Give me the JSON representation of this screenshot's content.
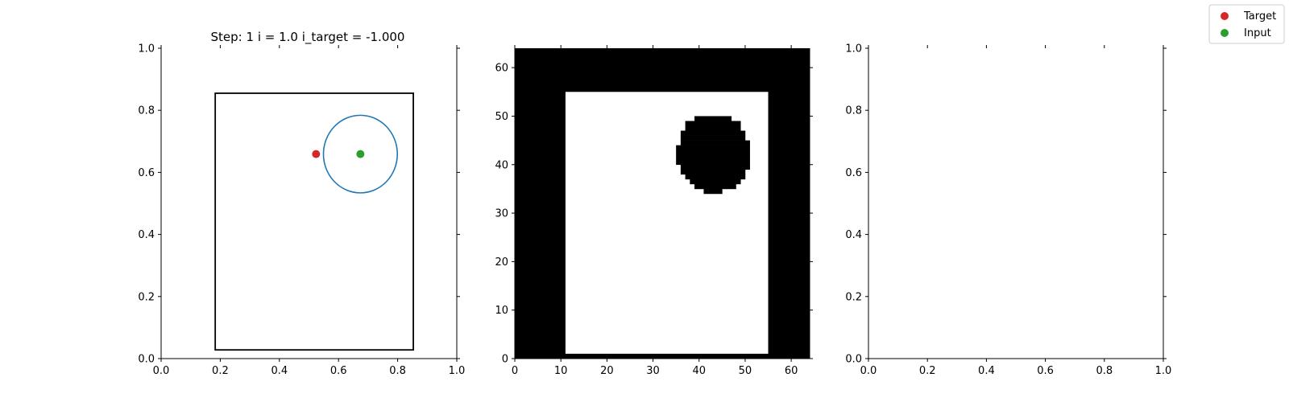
{
  "chart_data": [
    {
      "type": "scatter",
      "title": "Step: 1 i = 1.0 i_target = -1.000",
      "xlim": [
        0,
        1
      ],
      "ylim": [
        0,
        1
      ],
      "xticks": [
        "0.0",
        "0.2",
        "0.4",
        "0.6",
        "0.8",
        "1.0"
      ],
      "yticks": [
        "0.0",
        "0.2",
        "0.4",
        "0.6",
        "0.8",
        "1.0"
      ],
      "xtick_values": [
        0,
        0.2,
        0.4,
        0.6,
        0.8,
        1.0
      ],
      "ytick_values": [
        0,
        0.2,
        0.4,
        0.6,
        0.8,
        1.0
      ],
      "rectangle": {
        "x0": 0.183,
        "y0": 0.028,
        "x1": 0.853,
        "y1": 0.855,
        "color": "#000000"
      },
      "ellipse": {
        "cx": 0.674,
        "cy": 0.659,
        "rx": 0.125,
        "ry": 0.125,
        "color": "#1f77b4"
      },
      "points": [
        {
          "name": "Target",
          "x": 0.524,
          "y": 0.659,
          "color": "#d62728"
        },
        {
          "name": "Input",
          "x": 0.674,
          "y": 0.659,
          "color": "#2ca02c"
        }
      ]
    },
    {
      "type": "heatmap",
      "xlim": [
        0,
        64
      ],
      "ylim": [
        0,
        64
      ],
      "xticks": [
        "0",
        "10",
        "20",
        "30",
        "40",
        "50",
        "60"
      ],
      "yticks": [
        "0",
        "10",
        "20",
        "30",
        "40",
        "50",
        "60"
      ],
      "xtick_values": [
        0,
        10,
        20,
        30,
        40,
        50,
        60
      ],
      "ytick_values": [
        0,
        10,
        20,
        30,
        40,
        50,
        60
      ],
      "background": "#000000",
      "open_region": {
        "x0": 11,
        "y0": 1,
        "x1": 55,
        "y1": 55,
        "color": "#ffffff"
      },
      "blob_rows": [
        {
          "y0": 34,
          "y1": 35,
          "x0": 41,
          "x1": 45
        },
        {
          "y0": 35,
          "y1": 36,
          "x0": 39,
          "x1": 48
        },
        {
          "y0": 36,
          "y1": 37,
          "x0": 38,
          "x1": 49
        },
        {
          "y0": 37,
          "y1": 38,
          "x0": 37,
          "x1": 50
        },
        {
          "y0": 38,
          "y1": 39,
          "x0": 36,
          "x1": 50
        },
        {
          "y0": 39,
          "y1": 40,
          "x0": 36,
          "x1": 51
        },
        {
          "y0": 40,
          "y1": 44,
          "x0": 35,
          "x1": 51
        },
        {
          "y0": 44,
          "y1": 45,
          "x0": 36,
          "x1": 51
        },
        {
          "y0": 45,
          "y1": 46,
          "x0": 36,
          "x1": 50
        },
        {
          "y0": 46,
          "y1": 47,
          "x0": 36,
          "x1": 50
        },
        {
          "y0": 47,
          "y1": 48,
          "x0": 37,
          "x1": 49
        },
        {
          "y0": 48,
          "y1": 49,
          "x0": 37,
          "x1": 49
        },
        {
          "y0": 49,
          "y1": 50,
          "x0": 39,
          "x1": 47
        }
      ]
    },
    {
      "type": "scatter",
      "xlim": [
        0,
        1
      ],
      "ylim": [
        0,
        1
      ],
      "xticks": [
        "0.0",
        "0.2",
        "0.4",
        "0.6",
        "0.8",
        "1.0"
      ],
      "yticks": [
        "0.0",
        "0.2",
        "0.4",
        "0.6",
        "0.8",
        "1.0"
      ],
      "xtick_values": [
        0,
        0.2,
        0.4,
        0.6,
        0.8,
        1.0
      ],
      "ytick_values": [
        0,
        0.2,
        0.4,
        0.6,
        0.8,
        1.0
      ]
    }
  ],
  "legend": {
    "placement": "top-right",
    "items": [
      {
        "label": "Target",
        "color": "#d62728"
      },
      {
        "label": "Input",
        "color": "#2ca02c"
      }
    ]
  }
}
